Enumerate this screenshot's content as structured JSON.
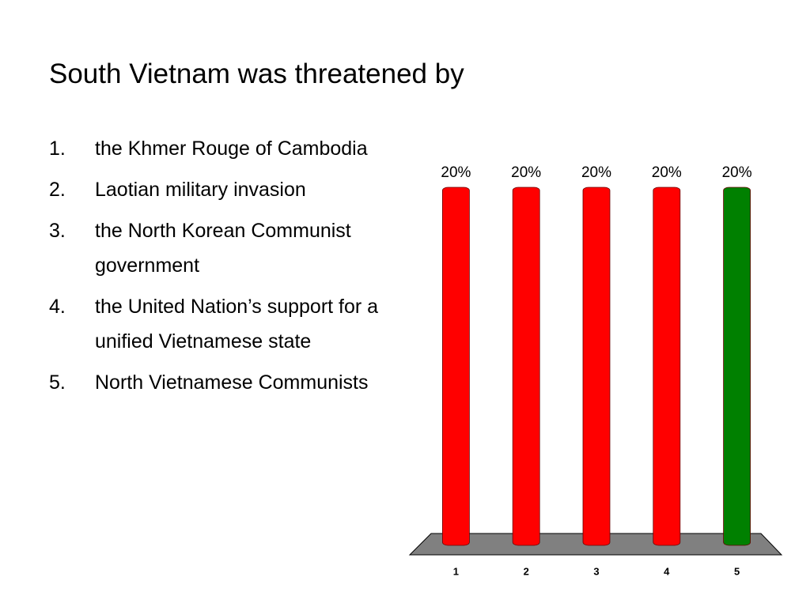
{
  "slide": {
    "title": "South Vietnam was threatened by",
    "items": [
      {
        "number": "1.",
        "text": "the Khmer Rouge of Cambodia"
      },
      {
        "number": "2.",
        "text": "Laotian military invasion"
      },
      {
        "number": "3.",
        "text": "the North Korean Communist government"
      },
      {
        "number": "4.",
        "text": "the United Nation’s support for a unified Vietnamese state"
      },
      {
        "number": "5.",
        "text": "North Vietnamese Communists"
      }
    ]
  },
  "chart_data": {
    "type": "bar",
    "categories": [
      "1",
      "2",
      "3",
      "4",
      "5"
    ],
    "values": [
      20,
      20,
      20,
      20,
      20
    ],
    "value_labels": [
      "20%",
      "20%",
      "20%",
      "20%",
      "20%"
    ],
    "colors": [
      "#ff0000",
      "#ff0000",
      "#ff0000",
      "#ff0000",
      "#008000"
    ]
  }
}
